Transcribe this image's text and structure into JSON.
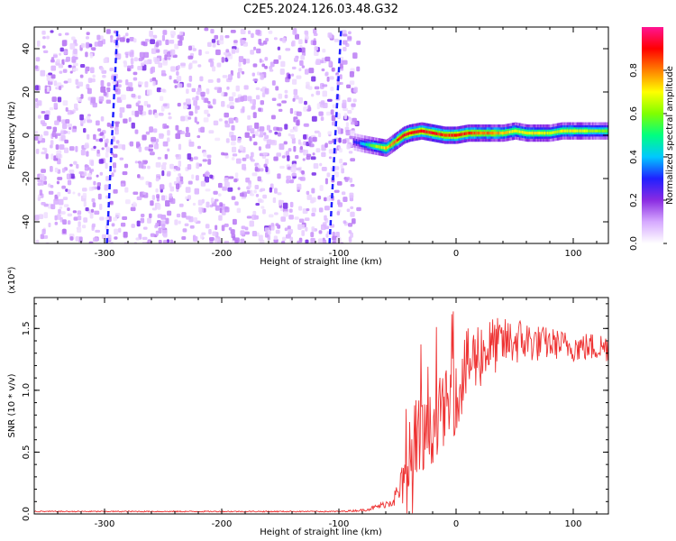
{
  "title": "C2E5.2024.126.03.48.G32",
  "chart_data": [
    {
      "type": "heatmap",
      "xlabel": "Height of straight line (km)",
      "ylabel": "Frequency (Hz)",
      "xlim": [
        -360,
        130
      ],
      "ylim": [
        -50,
        50
      ],
      "xticks": [
        -300,
        -200,
        -100,
        0,
        100
      ],
      "yticks": [
        -40,
        -20,
        0,
        20,
        40
      ],
      "xtick_labels": [
        "-300",
        "-200",
        "-100",
        "0",
        "100"
      ],
      "ytick_labels": [
        "-40",
        "-20",
        "0",
        "20",
        "40"
      ],
      "colorbar": {
        "label": "Normalized spectral amplitude",
        "range": [
          0,
          1
        ],
        "ticks": [
          0.0,
          0.2,
          0.4,
          0.6,
          0.8
        ],
        "tick_labels": [
          "0.0",
          "0.2",
          "0.4",
          "0.6",
          "0.8"
        ],
        "colors": [
          "#ffffff",
          "#d6a9ff",
          "#8a2be2",
          "#2020ff",
          "#00c8ff",
          "#00ff80",
          "#80ff00",
          "#ffff00",
          "#ff8000",
          "#ff0000",
          "#ff1493"
        ]
      },
      "noise_region": {
        "x_range": [
          -360,
          -85
        ],
        "y_range": [
          -50,
          50
        ],
        "typical_amplitude": 0.1
      },
      "signal_track": {
        "x": [
          -88,
          -80,
          -70,
          -60,
          -55,
          -50,
          -45,
          -40,
          -30,
          -20,
          -10,
          0,
          10,
          20,
          30,
          40,
          50,
          60,
          70,
          80,
          90,
          100,
          110,
          120,
          130
        ],
        "y": [
          -3,
          -4,
          -5,
          -6,
          -4,
          -2,
          0,
          1,
          2,
          1,
          0,
          0,
          1,
          1,
          1,
          1,
          2,
          1,
          1,
          1,
          2,
          2,
          2,
          2,
          2
        ],
        "amplitude": [
          0.25,
          0.4,
          0.6,
          0.75,
          0.8,
          0.85,
          0.9,
          0.9,
          0.9,
          0.9,
          0.85,
          0.9,
          0.85,
          0.8,
          0.8,
          0.75,
          0.7,
          0.7,
          0.7,
          0.65,
          0.7,
          0.7,
          0.65,
          0.6,
          0.6
        ]
      },
      "streaks": [
        {
          "x0": -108,
          "y0": -50,
          "x1": -98,
          "y1": 50
        },
        {
          "x0": -298,
          "y0": -50,
          "x1": -289,
          "y1": 50
        }
      ]
    },
    {
      "type": "line",
      "xlabel": "Height of straight line (km)",
      "ylabel": "SNR (10 * v/v)",
      "y_multiplier": "(x10⁴)",
      "xlim": [
        -360,
        130
      ],
      "ylim": [
        0,
        1.75
      ],
      "xticks": [
        -300,
        -200,
        -100,
        0,
        100
      ],
      "yticks": [
        0.0,
        0.5,
        1.0,
        1.5
      ],
      "xtick_labels": [
        "-300",
        "-200",
        "-100",
        "0",
        "100"
      ],
      "ytick_labels": [
        "0.0",
        "0.5",
        "1.0",
        "1.5"
      ],
      "series": [
        {
          "color": "#ee3333",
          "x": [
            -360,
            -300,
            -250,
            -200,
            -150,
            -100,
            -80,
            -70,
            -60,
            -50,
            -45,
            -40,
            -35,
            -30,
            -25,
            -20,
            -15,
            -10,
            -5,
            0,
            5,
            10,
            15,
            20,
            25,
            30,
            40,
            50,
            60,
            70,
            80,
            90,
            100,
            110,
            120,
            130
          ],
          "y": [
            0.02,
            0.02,
            0.02,
            0.02,
            0.02,
            0.02,
            0.03,
            0.05,
            0.08,
            0.15,
            0.25,
            0.35,
            0.45,
            0.55,
            0.62,
            0.7,
            0.8,
            0.85,
            0.9,
            1.0,
            1.1,
            1.2,
            1.25,
            1.3,
            1.32,
            1.35,
            1.38,
            1.4,
            1.4,
            1.38,
            1.38,
            1.37,
            1.35,
            1.35,
            1.35,
            1.35
          ],
          "noise_amplitude": [
            0.005,
            0.005,
            0.005,
            0.005,
            0.005,
            0.005,
            0.01,
            0.02,
            0.03,
            0.1,
            0.2,
            0.4,
            0.5,
            0.4,
            0.3,
            0.3,
            0.3,
            0.3,
            0.3,
            0.35,
            0.3,
            0.3,
            0.3,
            0.3,
            0.25,
            0.25,
            0.2,
            0.2,
            0.18,
            0.15,
            0.13,
            0.12,
            0.12,
            0.12,
            0.12,
            0.12
          ]
        }
      ]
    }
  ]
}
